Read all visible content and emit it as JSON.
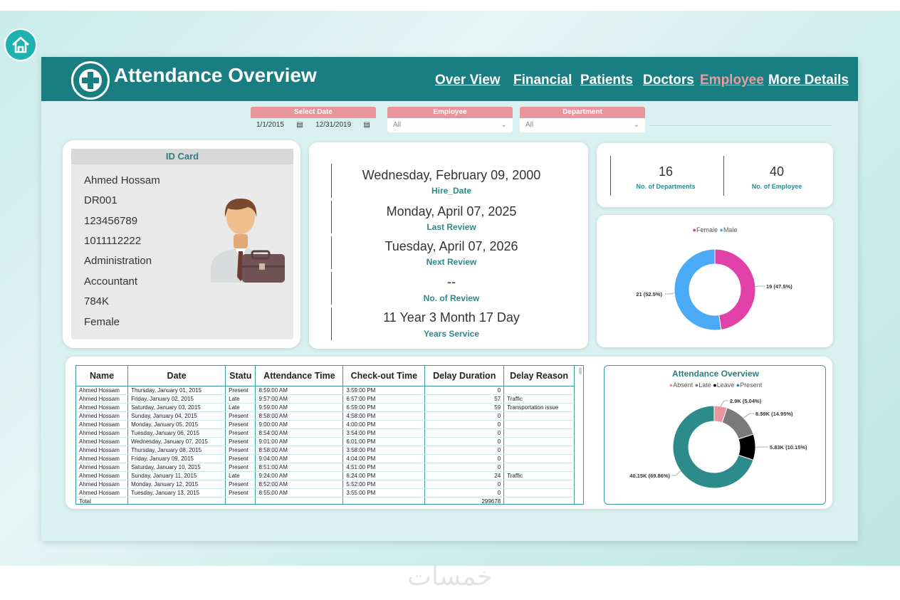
{
  "header": {
    "title": "Attendance Overview",
    "nav": [
      "Over View",
      "Financial",
      "Patients",
      "Doctors",
      "Employee",
      "More Details"
    ]
  },
  "filters": {
    "date": {
      "label": "Select Date",
      "start": "1/1/2015",
      "end": "12/31/2019"
    },
    "employee": {
      "label": "Employee",
      "value": "All"
    },
    "department": {
      "label": "Department",
      "value": "All"
    }
  },
  "id_card": {
    "title": "ID Card",
    "lines": [
      "Ahmed Hossam",
      "DR001",
      "123456789",
      "1011112222",
      "Administration",
      "Accountant",
      "784K",
      "Female"
    ]
  },
  "dates": [
    {
      "value": "Wednesday, February 09, 2000",
      "label": "Hire_Date"
    },
    {
      "value": "Monday, April 07, 2025",
      "label": "Last Review"
    },
    {
      "value": "Tuesday, April 07, 2026",
      "label": "Next Review"
    },
    {
      "value": "--",
      "label": "No. of Review"
    },
    {
      "value": "11 Year 3 Month 17 Day",
      "label": "Years Service"
    }
  ],
  "kpis": [
    {
      "value": "16",
      "label": "No. of Departments"
    },
    {
      "value": "40",
      "label": "No. of Employee"
    }
  ],
  "chart_data": [
    {
      "type": "pie",
      "legend": [
        "Female",
        "Male"
      ],
      "slices": [
        {
          "name": "Female",
          "value": 19,
          "label": "19 (47.5%)",
          "color": "#e040a8"
        },
        {
          "name": "Male",
          "value": 21,
          "label": "21 (52.5%)",
          "color": "#4aaaf5"
        }
      ]
    },
    {
      "type": "pie",
      "title": "Attendance Overview",
      "legend": [
        "Absent",
        "Late",
        "Leave",
        "Present"
      ],
      "slices": [
        {
          "name": "Absent",
          "value": 2900,
          "label": "2.9K (5.04%)",
          "color": "#e8959c"
        },
        {
          "name": "Late",
          "value": 8590,
          "label": "8.59K (14.95%)",
          "color": "#7a7a7a"
        },
        {
          "name": "Leave",
          "value": 5830,
          "label": "5.83K (10.15%)",
          "color": "#000000"
        },
        {
          "name": "Present",
          "value": 40150,
          "label": "40.15K (69.86%)",
          "color": "#2e8b8b"
        }
      ]
    }
  ],
  "table": {
    "columns": [
      "Name",
      "Date",
      "Statu",
      "Attendance Time",
      "Check-out Time",
      "Delay Duration",
      "Delay Reason"
    ],
    "rows": [
      [
        "Ahmed Hossam",
        "Thursday, January 01, 2015",
        "Present",
        "8:59:00 AM",
        "3:59:00 PM",
        "0",
        ""
      ],
      [
        "Ahmed Hossam",
        "Friday, January 02, 2015",
        "Late",
        "9:57:00 AM",
        "6:57:00 PM",
        "57",
        "Traffic"
      ],
      [
        "Ahmed Hossam",
        "Saturday, January 03, 2015",
        "Late",
        "9:59:00 AM",
        "6:59:00 PM",
        "59",
        "Transportation issue"
      ],
      [
        "Ahmed Hossam",
        "Sunday, January 04, 2015",
        "Present",
        "8:58:00 AM",
        "4:58:00 PM",
        "0",
        ""
      ],
      [
        "Ahmed Hossam",
        "Monday, January 05, 2015",
        "Present",
        "9:00:00 AM",
        "4:00:00 PM",
        "0",
        ""
      ],
      [
        "Ahmed Hossam",
        "Tuesday, January 06, 2015",
        "Present",
        "8:54:00 AM",
        "3:54:00 PM",
        "0",
        ""
      ],
      [
        "Ahmed Hossam",
        "Wednesday, January 07, 2015",
        "Present",
        "9:01:00 AM",
        "6:01:00 PM",
        "0",
        ""
      ],
      [
        "Ahmed Hossam",
        "Thursday, January 08, 2015",
        "Present",
        "8:58:00 AM",
        "3:58:00 PM",
        "0",
        ""
      ],
      [
        "Ahmed Hossam",
        "Friday, January 09, 2015",
        "Present",
        "9:04:00 AM",
        "4:04:00 PM",
        "0",
        ""
      ],
      [
        "Ahmed Hossam",
        "Saturday, January 10, 2015",
        "Present",
        "8:51:00 AM",
        "4:51:00 PM",
        "0",
        ""
      ],
      [
        "Ahmed Hossam",
        "Sunday, January 11, 2015",
        "Late",
        "9:24:00 AM",
        "6:24:00 PM",
        "24",
        "Traffic"
      ],
      [
        "Ahmed Hossam",
        "Monday, January 12, 2015",
        "Present",
        "8:52:00 AM",
        "5:52:00 PM",
        "0",
        ""
      ],
      [
        "Ahmed Hossam",
        "Tuesday, January 13, 2015",
        "Present",
        "8:55:00 AM",
        "3:55:00 PM",
        "0",
        ""
      ]
    ],
    "total_label": "Total",
    "total_value": "299678"
  },
  "watermark": "خمسات"
}
